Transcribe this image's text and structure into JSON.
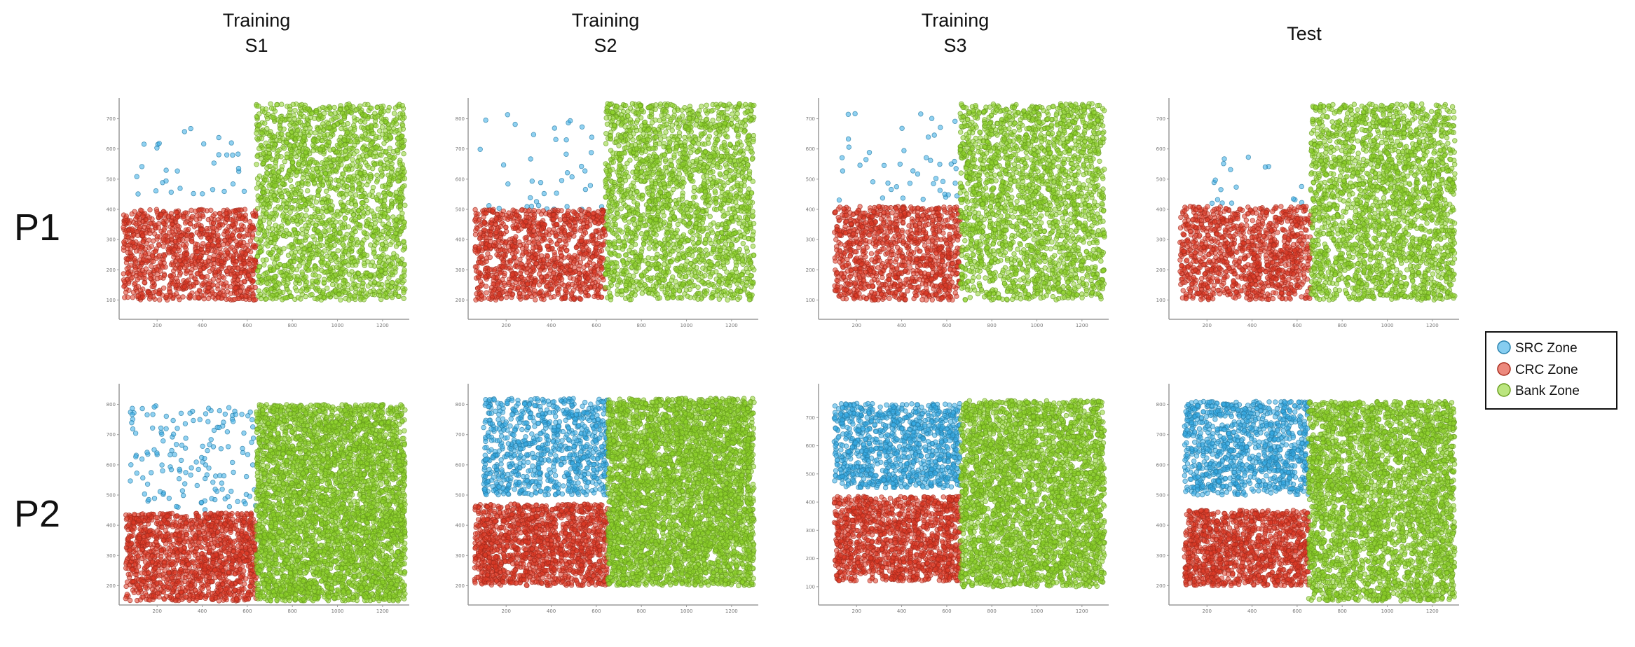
{
  "colors": {
    "src": "#35ace6",
    "crc": "#e03a27",
    "bank": "#8ed42a",
    "axis": "#9a9a9a",
    "legend_border": "#111111"
  },
  "column_titles": [
    [
      "Training",
      "S1"
    ],
    [
      "Training",
      "S2"
    ],
    [
      "Training",
      "S3"
    ],
    [
      "Test"
    ]
  ],
  "row_labels": [
    "P1",
    "P2"
  ],
  "legend": [
    {
      "key": "src",
      "label": "SRC Zone"
    },
    {
      "key": "crc",
      "label": "CRC Zone"
    },
    {
      "key": "bank",
      "label": "Bank Zone"
    }
  ],
  "chart_data": [
    {
      "type": "scatter",
      "row": "P1",
      "column": "Training S1",
      "xlim": [
        50,
        1300
      ],
      "ylim": [
        50,
        750
      ],
      "x_ticks": [
        "200",
        "400",
        "600",
        "800",
        "1000",
        "1200"
      ],
      "y_ticks": [
        "100",
        "200",
        "300",
        "400",
        "500",
        "600",
        "700"
      ],
      "zones": [
        {
          "key": "src",
          "x": [
            100,
            640
          ],
          "y": [
            450,
            680
          ],
          "count": 32
        },
        {
          "key": "crc",
          "x": [
            50,
            640
          ],
          "y": [
            100,
            400
          ],
          "count": 1100
        },
        {
          "key": "bank",
          "x": [
            640,
            1300
          ],
          "y": [
            100,
            750
          ],
          "count": 2200
        }
      ]
    },
    {
      "type": "scatter",
      "row": "P1",
      "column": "Training S2",
      "xlim": [
        50,
        1300
      ],
      "ylim": [
        150,
        850
      ],
      "x_ticks": [
        "200",
        "400",
        "600",
        "800",
        "1000",
        "1200"
      ],
      "y_ticks": [
        "200",
        "300",
        "400",
        "500",
        "600",
        "700",
        "800"
      ],
      "zones": [
        {
          "key": "src",
          "x": [
            60,
            640
          ],
          "y": [
            500,
            820
          ],
          "count": 40
        },
        {
          "key": "crc",
          "x": [
            60,
            640
          ],
          "y": [
            200,
            500
          ],
          "count": 1100
        },
        {
          "key": "bank",
          "x": [
            640,
            1300
          ],
          "y": [
            200,
            850
          ],
          "count": 2200
        }
      ]
    },
    {
      "type": "scatter",
      "row": "P1",
      "column": "Training S3",
      "xlim": [
        50,
        1300
      ],
      "ylim": [
        50,
        750
      ],
      "x_ticks": [
        "200",
        "400",
        "600",
        "800",
        "1000",
        "1200"
      ],
      "y_ticks": [
        "100",
        "200",
        "300",
        "400",
        "500",
        "600",
        "700"
      ],
      "zones": [
        {
          "key": "src",
          "x": [
            100,
            660
          ],
          "y": [
            430,
            720
          ],
          "count": 45
        },
        {
          "key": "crc",
          "x": [
            100,
            660
          ],
          "y": [
            100,
            410
          ],
          "count": 1100
        },
        {
          "key": "bank",
          "x": [
            660,
            1300
          ],
          "y": [
            100,
            750
          ],
          "count": 2200
        }
      ]
    },
    {
      "type": "scatter",
      "row": "P1",
      "column": "Test",
      "xlim": [
        50,
        1300
      ],
      "ylim": [
        50,
        750
      ],
      "x_ticks": [
        "200",
        "400",
        "600",
        "800",
        "1000",
        "1200"
      ],
      "y_ticks": [
        "100",
        "200",
        "300",
        "400",
        "500",
        "600",
        "700"
      ],
      "zones": [
        {
          "key": "src",
          "x": [
            150,
            660
          ],
          "y": [
            420,
            620
          ],
          "count": 18
        },
        {
          "key": "crc",
          "x": [
            80,
            660
          ],
          "y": [
            100,
            410
          ],
          "count": 1100
        },
        {
          "key": "bank",
          "x": [
            660,
            1300
          ],
          "y": [
            100,
            750
          ],
          "count": 2300
        }
      ]
    },
    {
      "type": "scatter",
      "row": "P2",
      "column": "Training S1",
      "xlim": [
        50,
        1300
      ],
      "ylim": [
        150,
        850
      ],
      "x_ticks": [
        "200",
        "400",
        "600",
        "800",
        "1000",
        "1200"
      ],
      "y_ticks": [
        "200",
        "300",
        "400",
        "500",
        "600",
        "700",
        "800"
      ],
      "zones": [
        {
          "key": "src",
          "x": [
            80,
            640
          ],
          "y": [
            450,
            800
          ],
          "count": 150
        },
        {
          "key": "crc",
          "x": [
            60,
            640
          ],
          "y": [
            150,
            440
          ],
          "count": 1400
        },
        {
          "key": "bank",
          "x": [
            640,
            1300
          ],
          "y": [
            150,
            800
          ],
          "count": 4200
        }
      ]
    },
    {
      "type": "scatter",
      "row": "P2",
      "column": "Training S2",
      "xlim": [
        50,
        1300
      ],
      "ylim": [
        150,
        850
      ],
      "x_ticks": [
        "200",
        "400",
        "600",
        "800",
        "1000",
        "1200"
      ],
      "y_ticks": [
        "200",
        "300",
        "400",
        "500",
        "600",
        "700",
        "800"
      ],
      "zones": [
        {
          "key": "src",
          "x": [
            100,
            650
          ],
          "y": [
            500,
            820
          ],
          "count": 850
        },
        {
          "key": "crc",
          "x": [
            60,
            650
          ],
          "y": [
            200,
            470
          ],
          "count": 1400
        },
        {
          "key": "bank",
          "x": [
            650,
            1300
          ],
          "y": [
            200,
            820
          ],
          "count": 4000
        }
      ]
    },
    {
      "type": "scatter",
      "row": "P2",
      "column": "Training S3",
      "xlim": [
        50,
        1300
      ],
      "ylim": [
        50,
        800
      ],
      "x_ticks": [
        "200",
        "400",
        "600",
        "800",
        "1000",
        "1200"
      ],
      "y_ticks": [
        "100",
        "200",
        "300",
        "400",
        "500",
        "600",
        "700"
      ],
      "zones": [
        {
          "key": "src",
          "x": [
            100,
            660
          ],
          "y": [
            450,
            750
          ],
          "count": 1000
        },
        {
          "key": "crc",
          "x": [
            100,
            660
          ],
          "y": [
            120,
            420
          ],
          "count": 1300
        },
        {
          "key": "bank",
          "x": [
            660,
            1300
          ],
          "y": [
            100,
            760
          ],
          "count": 3300
        }
      ]
    },
    {
      "type": "scatter",
      "row": "P2",
      "column": "Test",
      "xlim": [
        50,
        1300
      ],
      "ylim": [
        150,
        850
      ],
      "x_ticks": [
        "200",
        "400",
        "600",
        "800",
        "1000",
        "1200"
      ],
      "y_ticks": [
        "200",
        "300",
        "400",
        "500",
        "600",
        "700",
        "800"
      ],
      "zones": [
        {
          "key": "src",
          "x": [
            100,
            650
          ],
          "y": [
            500,
            810
          ],
          "count": 1000
        },
        {
          "key": "crc",
          "x": [
            100,
            650
          ],
          "y": [
            200,
            450
          ],
          "count": 1200
        },
        {
          "key": "bank",
          "x": [
            650,
            1300
          ],
          "y": [
            150,
            810
          ],
          "count": 3300
        }
      ]
    }
  ]
}
